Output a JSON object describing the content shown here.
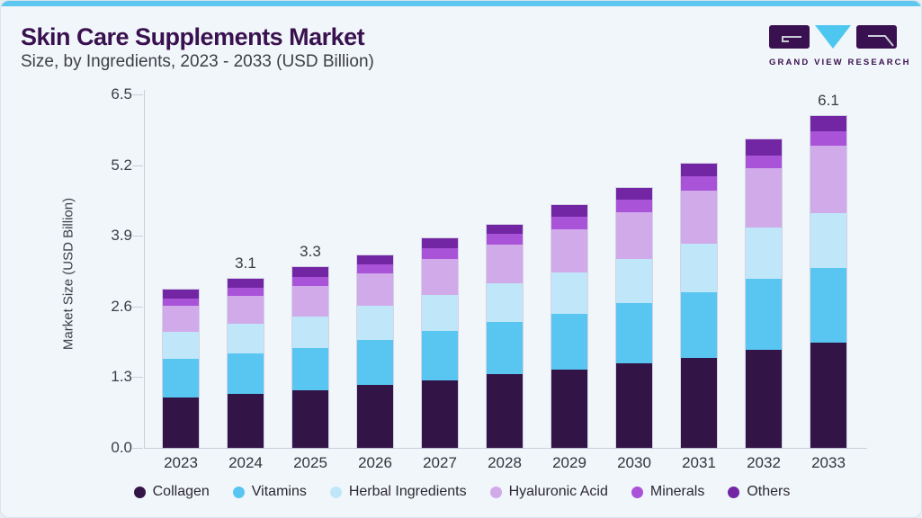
{
  "header": {
    "title": "Skin Care Supplements Market",
    "subtitle": "Size, by Ingredients, 2023 - 2033 (USD Billion)",
    "logo": {
      "text": "GRAND VIEW RESEARCH"
    }
  },
  "colors": {
    "accent_bar": "#5ec7f0",
    "title_text": "#3a1150",
    "axis_line": "#c9cfd6",
    "logo_purple": "#3a1150",
    "logo_triangle": "#4ec7f0"
  },
  "chart_data": {
    "type": "bar",
    "stacked": true,
    "title": "Skin Care Supplements Market Size, by Ingredients, 2023 - 2033 (USD Billion)",
    "xlabel": "",
    "ylabel": "Market Size (USD Billion)",
    "ylim": [
      0,
      6.5
    ],
    "yticks": [
      0.0,
      1.3,
      2.6,
      3.9,
      5.2,
      6.5
    ],
    "grid": false,
    "legend_position": "bottom",
    "categories": [
      "2023",
      "2024",
      "2025",
      "2026",
      "2027",
      "2028",
      "2029",
      "2030",
      "2031",
      "2032",
      "2033"
    ],
    "series": [
      {
        "name": "Collagen",
        "color": "#331447",
        "values": [
          0.92,
          1.0,
          1.06,
          1.15,
          1.24,
          1.35,
          1.44,
          1.55,
          1.66,
          1.81,
          1.93
        ]
      },
      {
        "name": "Vitamins",
        "color": "#59c6f2",
        "values": [
          0.72,
          0.73,
          0.78,
          0.84,
          0.91,
          0.96,
          1.02,
          1.12,
          1.2,
          1.3,
          1.37
        ]
      },
      {
        "name": "Herbal Ingredients",
        "color": "#bfe7f9",
        "values": [
          0.5,
          0.55,
          0.58,
          0.62,
          0.66,
          0.71,
          0.77,
          0.8,
          0.9,
          0.94,
          1.02
        ]
      },
      {
        "name": "Hyaluronic Acid",
        "color": "#d1aaea",
        "values": [
          0.47,
          0.51,
          0.56,
          0.6,
          0.66,
          0.71,
          0.78,
          0.87,
          0.97,
          1.1,
          1.23
        ]
      },
      {
        "name": "Minerals",
        "color": "#a953d8",
        "values": [
          0.14,
          0.15,
          0.16,
          0.17,
          0.2,
          0.2,
          0.24,
          0.22,
          0.26,
          0.23,
          0.28
        ]
      },
      {
        "name": "Others",
        "color": "#7226a3",
        "values": [
          0.16,
          0.17,
          0.18,
          0.16,
          0.19,
          0.18,
          0.22,
          0.22,
          0.23,
          0.29,
          0.27
        ]
      }
    ],
    "totals": [
      2.91,
      3.11,
      3.32,
      3.54,
      3.86,
      4.11,
      4.47,
      4.78,
      5.22,
      5.67,
      6.1
    ],
    "totals_labels": {
      "2024": "3.1",
      "2025": "3.3",
      "2033": "6.1"
    }
  }
}
